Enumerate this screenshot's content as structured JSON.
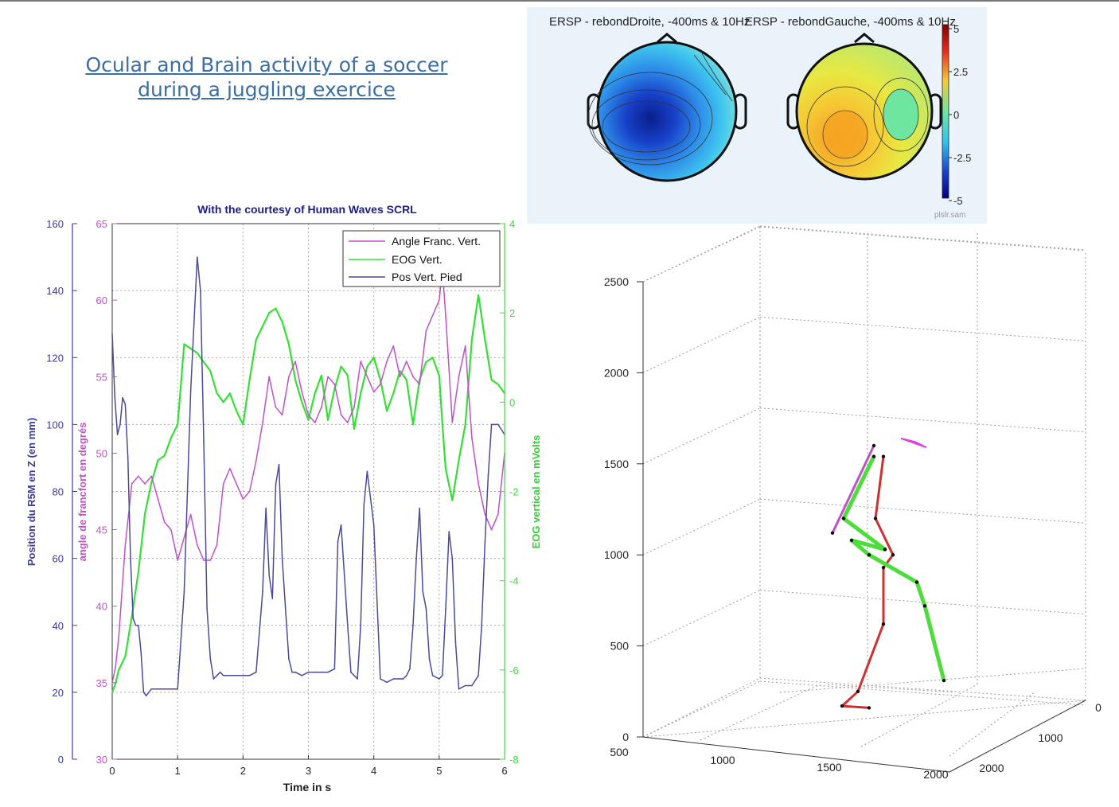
{
  "slide": {
    "title_line1": "Ocular and Brain activity of a soccer ",
    "title_line2": "during a juggling exercice"
  },
  "colors": {
    "foot": "#4a4a9c",
    "angle": "#c050c8",
    "eog": "#33e033",
    "title_blue": "#3a6ea5",
    "right_leg": "#d03030",
    "left_leg": "#4ddd3a",
    "head": "#e040e0"
  },
  "ersp": {
    "map_left_title": "ERSP - rebondDroite, -400ms & 10Hz",
    "map_right_title": "ERSP - rebondGauche, -400ms & 10Hz",
    "colorbar_ticks": [
      "5",
      "2.5",
      "0",
      "-2.5",
      "-5"
    ],
    "watermark": "plslr.sam"
  },
  "chart_data": [
    {
      "type": "line",
      "title": "With the courtesy of Human Waves SCRL",
      "xlabel": "Time in s",
      "ylabel": "Position du R5M en Z (en mm)",
      "ylabel2": "angle de francfort en degrés",
      "ylabel3": "EOG vertical en mVolts",
      "xlim": [
        0,
        6
      ],
      "ylim": [
        0,
        160
      ],
      "ylim2": [
        30,
        65
      ],
      "ylim3": [
        -8,
        4
      ],
      "x_ticks": [
        "0",
        "1",
        "2",
        "3",
        "4",
        "5",
        "6"
      ],
      "y_ticks": [
        "0",
        "20",
        "40",
        "60",
        "80",
        "100",
        "120",
        "140",
        "160"
      ],
      "y2_ticks": [
        "30",
        "35",
        "40",
        "45",
        "50",
        "55",
        "60",
        "65"
      ],
      "y3_ticks": [
        "-8",
        "-6",
        "-4",
        "-2",
        "0",
        "2",
        "4"
      ],
      "grid": true,
      "legend_position": "top-right",
      "series": [
        {
          "name": "Angle Franc. Vert.",
          "axis": "y2",
          "x": [
            0,
            0.05,
            0.1,
            0.2,
            0.3,
            0.4,
            0.5,
            0.6,
            0.7,
            0.8,
            0.9,
            1.0,
            1.1,
            1.2,
            1.3,
            1.4,
            1.5,
            1.6,
            1.7,
            1.8,
            1.9,
            2.0,
            2.1,
            2.2,
            2.3,
            2.4,
            2.5,
            2.6,
            2.7,
            2.8,
            2.9,
            3.0,
            3.1,
            3.2,
            3.3,
            3.4,
            3.5,
            3.6,
            3.7,
            3.8,
            3.9,
            4.0,
            4.1,
            4.2,
            4.3,
            4.4,
            4.5,
            4.6,
            4.7,
            4.8,
            4.9,
            5.0,
            5.05,
            5.1,
            5.2,
            5.3,
            5.4,
            5.5,
            5.6,
            5.7,
            5.8,
            5.9,
            6.0
          ],
          "values": [
            35,
            36,
            38,
            44,
            48,
            48.5,
            48,
            48.5,
            47,
            45.5,
            45,
            43,
            44.5,
            46,
            44,
            43,
            43,
            44,
            48,
            49,
            48,
            47,
            47.5,
            49.5,
            52,
            55,
            53,
            52.5,
            55,
            56,
            54,
            52.5,
            52,
            53,
            55,
            54.5,
            52.5,
            52,
            53,
            56,
            55,
            54,
            54.5,
            56,
            57,
            55,
            56,
            55,
            54.5,
            58,
            59,
            60,
            62,
            59,
            52,
            55,
            57,
            51,
            48,
            46,
            45,
            46,
            50
          ]
        },
        {
          "name": "EOG Vert.",
          "axis": "y3",
          "x": [
            0,
            0.05,
            0.1,
            0.2,
            0.3,
            0.4,
            0.5,
            0.6,
            0.7,
            0.8,
            0.9,
            1.0,
            1.1,
            1.2,
            1.3,
            1.4,
            1.5,
            1.6,
            1.7,
            1.8,
            1.9,
            2.0,
            2.1,
            2.2,
            2.3,
            2.4,
            2.5,
            2.6,
            2.7,
            2.8,
            2.9,
            3.0,
            3.1,
            3.2,
            3.3,
            3.4,
            3.5,
            3.6,
            3.7,
            3.8,
            3.9,
            4.0,
            4.1,
            4.2,
            4.3,
            4.4,
            4.5,
            4.6,
            4.7,
            4.8,
            4.9,
            5.0,
            5.05,
            5.1,
            5.2,
            5.3,
            5.4,
            5.5,
            5.6,
            5.7,
            5.8,
            5.9,
            6.0
          ],
          "values": [
            -6.5,
            -6.3,
            -6,
            -5.7,
            -4.8,
            -3.8,
            -2.5,
            -1.8,
            -1.3,
            -1.2,
            -0.8,
            -0.5,
            1.3,
            1.2,
            1.1,
            0.9,
            0.7,
            0.2,
            0,
            0.2,
            -0.2,
            -0.5,
            0.5,
            1.4,
            1.7,
            2.0,
            2.1,
            1.8,
            1.3,
            0.5,
            0,
            -0.4,
            0.2,
            0.6,
            -0.4,
            0.3,
            0.8,
            0.6,
            -0.6,
            0.2,
            0.8,
            1.0,
            0.5,
            -0.2,
            0.2,
            0.7,
            0.5,
            -0.5,
            0.5,
            0.9,
            1.0,
            0.6,
            -0.5,
            -1.5,
            -2.2,
            -1.3,
            -0.5,
            1.4,
            2.4,
            1.4,
            0.5,
            0.4,
            0.2
          ]
        },
        {
          "name": "Pos Vert. Pied",
          "axis": "y1",
          "x": [
            0,
            0.04,
            0.08,
            0.12,
            0.16,
            0.2,
            0.24,
            0.28,
            0.32,
            0.36,
            0.4,
            0.44,
            0.48,
            0.52,
            0.6,
            0.7,
            0.8,
            0.9,
            1.0,
            1.1,
            1.2,
            1.25,
            1.3,
            1.35,
            1.4,
            1.45,
            1.5,
            1.55,
            1.6,
            1.65,
            1.7,
            1.8,
            1.9,
            2.0,
            2.1,
            2.2,
            2.3,
            2.35,
            2.4,
            2.45,
            2.5,
            2.55,
            2.6,
            2.65,
            2.7,
            2.75,
            2.8,
            2.9,
            3.0,
            3.1,
            3.2,
            3.3,
            3.4,
            3.45,
            3.5,
            3.55,
            3.6,
            3.65,
            3.7,
            3.75,
            3.8,
            3.85,
            3.9,
            4.0,
            4.1,
            4.2,
            4.3,
            4.4,
            4.45,
            4.5,
            4.55,
            4.6,
            4.65,
            4.7,
            4.75,
            4.8,
            4.85,
            4.9,
            5.0,
            5.05,
            5.1,
            5.15,
            5.2,
            5.25,
            5.3,
            5.4,
            5.5,
            5.6,
            5.65,
            5.7,
            5.75,
            5.8,
            5.9,
            6.0
          ],
          "values": [
            127,
            108,
            97,
            100,
            108,
            106,
            90,
            60,
            42,
            40,
            40,
            32,
            20,
            19,
            21,
            21,
            21,
            21,
            21,
            50,
            110,
            130,
            150,
            140,
            95,
            45,
            30,
            24,
            25,
            26,
            25,
            25,
            25,
            25,
            25,
            26,
            50,
            75,
            55,
            48,
            82,
            88,
            60,
            45,
            30,
            26,
            26,
            25,
            26,
            26,
            26,
            26,
            27,
            65,
            70,
            55,
            40,
            26,
            25,
            24,
            40,
            76,
            86,
            70,
            24,
            23,
            24,
            24,
            24,
            25,
            27,
            40,
            60,
            75,
            50,
            45,
            30,
            25,
            24,
            25,
            45,
            68,
            60,
            35,
            21,
            22,
            22,
            25,
            40,
            65,
            85,
            100,
            100,
            97
          ]
        }
      ]
    },
    {
      "type": "scatter",
      "subtype": "3d-stick-figure",
      "xlabel": "",
      "ylabel": "",
      "zlabel": "",
      "x_ticks": [
        "500",
        "1000",
        "1500",
        "2000"
      ],
      "y_ticks": [
        "0",
        "1000",
        "2000"
      ],
      "z_ticks": [
        "0",
        "500",
        "1000",
        "1500",
        "2000",
        "2500"
      ],
      "zlim": [
        0,
        2500
      ],
      "grid": true,
      "series": [
        {
          "name": "",
          "color": "#d03030",
          "z_points": [
            1540,
            1200,
            1000,
            930,
            620,
            250,
            170,
            160
          ]
        },
        {
          "name": "",
          "color": "#4ddd3a",
          "z_points": [
            1540,
            1200,
            1030,
            1080,
            1000,
            850,
            720,
            310,
            240
          ]
        },
        {
          "name": "",
          "color": "#c050c8",
          "z_points": [
            1600,
            1120
          ]
        },
        {
          "name": "",
          "color": "#e040e0",
          "z_points": [
            1640,
            1620,
            1590
          ]
        }
      ]
    }
  ]
}
